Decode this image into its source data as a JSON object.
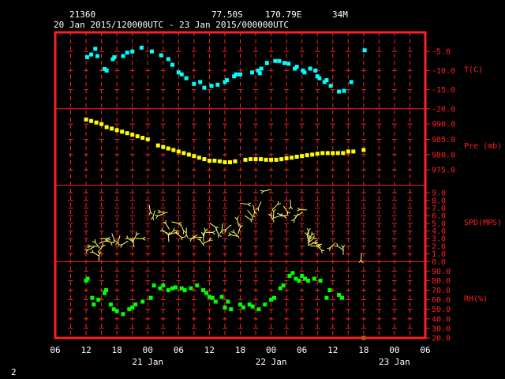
{
  "header": {
    "station_id": "21360",
    "latitude": "77.50S",
    "longitude": "170.79E",
    "elevation": "34M",
    "time_range": "20 Jan 2015/120000UTC - 23 Jan 2015/000000UTC"
  },
  "footer": {
    "page_number": "2"
  },
  "colors": {
    "frame": "#ff2020",
    "temperature": "#00ffff",
    "pressure": "#ffff00",
    "wind": "#ffff66",
    "humidity": "#00ff00",
    "text": "#ffffff"
  },
  "chart_data": {
    "type": "scatter",
    "x_unit": "hours since 20 Jan 06 UTC",
    "x_tick_labels": [
      "06",
      "12",
      "18",
      "00",
      "06",
      "12",
      "18",
      "00",
      "06",
      "12",
      "18",
      "00",
      "06"
    ],
    "x_day_labels": [
      {
        "label": "21 Jan",
        "tick_index": 3
      },
      {
        "label": "22 Jan",
        "tick_index": 7
      },
      {
        "label": "23 Jan",
        "tick_index": 11
      }
    ],
    "panels": [
      {
        "name": "temperature",
        "label": "T(C)",
        "ylim": [
          -20,
          0
        ],
        "tick_values": [
          -20,
          -15,
          -10,
          -5
        ],
        "tick_labels": [
          "-20.0",
          "-15.0",
          "-10.0",
          "-5.0"
        ],
        "points": [
          [
            6.2,
            -6.5
          ],
          [
            7.0,
            -5.8
          ],
          [
            7.8,
            -4.3
          ],
          [
            8.2,
            -6.2
          ],
          [
            9.6,
            -9.6
          ],
          [
            10.0,
            -10.0
          ],
          [
            11.2,
            -7.0
          ],
          [
            11.5,
            -6.5
          ],
          [
            13.2,
            -6.2
          ],
          [
            14.0,
            -5.3
          ],
          [
            15.0,
            -5.0
          ],
          [
            16.8,
            -4.0
          ],
          [
            18.8,
            -5.0
          ],
          [
            20.6,
            -6.0
          ],
          [
            22.0,
            -7.0
          ],
          [
            22.8,
            -8.5
          ],
          [
            24.0,
            -10.5
          ],
          [
            24.6,
            -11.0
          ],
          [
            25.5,
            -12.0
          ],
          [
            27.0,
            -13.5
          ],
          [
            28.2,
            -13.0
          ],
          [
            29.0,
            -14.5
          ],
          [
            30.4,
            -14.0
          ],
          [
            31.6,
            -13.7
          ],
          [
            33.0,
            -13.0
          ],
          [
            33.4,
            -12.5
          ],
          [
            34.8,
            -11.5
          ],
          [
            35.2,
            -11.0
          ],
          [
            36.0,
            -11.0
          ],
          [
            38.3,
            -10.5
          ],
          [
            39.5,
            -10.0
          ],
          [
            39.8,
            -10.7
          ],
          [
            40.1,
            -9.5
          ],
          [
            41.2,
            -8.0
          ],
          [
            42.8,
            -7.5
          ],
          [
            43.6,
            -7.5
          ],
          [
            44.6,
            -8.0
          ],
          [
            45.4,
            -8.2
          ],
          [
            46.6,
            -9.5
          ],
          [
            47.0,
            -9.0
          ],
          [
            48.2,
            -10.0
          ],
          [
            48.5,
            -10.5
          ],
          [
            49.6,
            -9.5
          ],
          [
            50.6,
            -10.0
          ],
          [
            51.0,
            -11.5
          ],
          [
            51.4,
            -12.0
          ],
          [
            52.4,
            -13.0
          ],
          [
            52.8,
            -12.5
          ],
          [
            53.6,
            -14.0
          ],
          [
            55.2,
            -15.5
          ],
          [
            56.2,
            -15.3
          ],
          [
            57.6,
            -13.0
          ],
          [
            60.2,
            -4.7
          ]
        ]
      },
      {
        "name": "pressure",
        "label": "Pre (mb)",
        "ylim": [
          970,
          995
        ],
        "tick_values": [
          975,
          980,
          985,
          990
        ],
        "tick_labels": [
          "975.0",
          "980.0",
          "985.0",
          "990.0"
        ],
        "points": [
          [
            6.0,
            991.5
          ],
          [
            7.0,
            991.0
          ],
          [
            8.0,
            990.5
          ],
          [
            9.0,
            990.0
          ],
          [
            10.0,
            989.0
          ],
          [
            11.0,
            988.5
          ],
          [
            12.0,
            988.0
          ],
          [
            13.0,
            987.5
          ],
          [
            14.0,
            987.0
          ],
          [
            15.0,
            986.5
          ],
          [
            16.0,
            986.0
          ],
          [
            17.0,
            985.5
          ],
          [
            18.0,
            985.0
          ],
          [
            20.0,
            983.0
          ],
          [
            21.0,
            982.5
          ],
          [
            22.0,
            982.0
          ],
          [
            23.0,
            981.5
          ],
          [
            24.0,
            981.0
          ],
          [
            25.0,
            980.5
          ],
          [
            26.0,
            980.0
          ],
          [
            27.0,
            979.5
          ],
          [
            28.0,
            979.0
          ],
          [
            29.0,
            978.5
          ],
          [
            30.0,
            978.0
          ],
          [
            31.0,
            978.0
          ],
          [
            32.0,
            977.8
          ],
          [
            33.0,
            977.5
          ],
          [
            34.0,
            977.5
          ],
          [
            35.0,
            977.8
          ],
          [
            37.0,
            978.3
          ],
          [
            38.0,
            978.5
          ],
          [
            39.0,
            978.5
          ],
          [
            40.0,
            978.5
          ],
          [
            41.0,
            978.3
          ],
          [
            42.0,
            978.3
          ],
          [
            43.0,
            978.3
          ],
          [
            44.0,
            978.5
          ],
          [
            45.0,
            978.8
          ],
          [
            46.0,
            979.0
          ],
          [
            47.0,
            979.3
          ],
          [
            48.0,
            979.5
          ],
          [
            49.0,
            979.8
          ],
          [
            50.0,
            980.0
          ],
          [
            51.0,
            980.3
          ],
          [
            52.0,
            980.5
          ],
          [
            53.0,
            980.5
          ],
          [
            54.0,
            980.5
          ],
          [
            55.0,
            980.5
          ],
          [
            56.0,
            980.5
          ],
          [
            57.0,
            981.0
          ],
          [
            58.0,
            981.0
          ],
          [
            60.0,
            981.5
          ]
        ]
      },
      {
        "name": "wind",
        "label": "SPD(MPS)",
        "ylim": [
          0,
          10
        ],
        "tick_values": [
          0,
          1,
          2,
          3,
          4,
          5,
          6,
          7,
          8,
          9
        ],
        "tick_labels": [
          "0.0",
          "1.0",
          "2.0",
          "3.0",
          "4.0",
          "5.0",
          "6.0",
          "7.0",
          "8.0",
          "9.0"
        ],
        "points": [
          [
            6.3,
            1.5
          ],
          [
            6.8,
            2.0
          ],
          [
            7.4,
            1.2
          ],
          [
            7.8,
            2.5
          ],
          [
            8.6,
            1.0
          ],
          [
            9.2,
            2.0
          ],
          [
            9.8,
            2.7
          ],
          [
            10.2,
            3.0
          ],
          [
            10.8,
            2.5
          ],
          [
            11.5,
            2.8
          ],
          [
            12.2,
            2.5
          ],
          [
            13.0,
            2.2
          ],
          [
            14.2,
            3.0
          ],
          [
            15.0,
            2.8
          ],
          [
            15.8,
            3.5
          ],
          [
            17.0,
            3.0
          ],
          [
            18.5,
            6.5
          ],
          [
            19.0,
            5.8
          ],
          [
            20.0,
            6.0
          ],
          [
            20.5,
            6.5
          ],
          [
            21.0,
            4.0
          ],
          [
            21.5,
            5.0
          ],
          [
            22.0,
            3.5
          ],
          [
            23.0,
            4.0
          ],
          [
            23.5,
            3.8
          ],
          [
            24.0,
            5.0
          ],
          [
            24.5,
            3.2
          ],
          [
            25.0,
            4.0
          ],
          [
            25.5,
            3.5
          ],
          [
            26.5,
            3.0
          ],
          [
            27.2,
            3.2
          ],
          [
            28.2,
            2.8
          ],
          [
            28.8,
            3.5
          ],
          [
            29.2,
            4.0
          ],
          [
            30.0,
            2.8
          ],
          [
            30.6,
            3.8
          ],
          [
            31.2,
            4.5
          ],
          [
            31.8,
            3.5
          ],
          [
            32.4,
            4.0
          ],
          [
            33.2,
            4.2
          ],
          [
            34.2,
            3.5
          ],
          [
            34.8,
            3.8
          ],
          [
            35.4,
            5.5
          ],
          [
            36.0,
            4.5
          ],
          [
            37.5,
            7.5
          ],
          [
            38.0,
            5.5
          ],
          [
            38.3,
            6.0
          ],
          [
            38.8,
            6.5
          ],
          [
            39.5,
            7.0
          ],
          [
            40.5,
            9.2
          ],
          [
            42.0,
            6.0
          ],
          [
            42.5,
            6.5
          ],
          [
            43.3,
            7.5
          ],
          [
            43.8,
            6.0
          ],
          [
            44.5,
            6.0
          ],
          [
            45.2,
            6.5
          ],
          [
            45.8,
            7.2
          ],
          [
            46.5,
            5.5
          ],
          [
            47.0,
            6.0
          ],
          [
            47.6,
            6.8
          ],
          [
            49.0,
            3.5
          ],
          [
            49.3,
            4.0
          ],
          [
            49.6,
            3.0
          ],
          [
            49.9,
            3.5
          ],
          [
            50.2,
            3.0
          ],
          [
            50.5,
            2.5
          ],
          [
            51.0,
            2.0
          ],
          [
            51.3,
            2.2
          ],
          [
            51.8,
            1.5
          ],
          [
            53.5,
            1.8
          ],
          [
            55.0,
            2.0
          ],
          [
            56.0,
            1.8
          ],
          [
            59.5,
            0.2
          ]
        ]
      },
      {
        "name": "humidity",
        "label": "RH(%)",
        "ylim": [
          20,
          100
        ],
        "tick_values": [
          20,
          30,
          40,
          50,
          60,
          70,
          80,
          90
        ],
        "tick_labels": [
          "20.0",
          "30.0",
          "40.0",
          "50.0",
          "60.0",
          "70.0",
          "80.0",
          "90.0"
        ],
        "points": [
          [
            6.0,
            80.0
          ],
          [
            6.3,
            82.0
          ],
          [
            7.2,
            62.0
          ],
          [
            7.5,
            55.0
          ],
          [
            8.4,
            60.0
          ],
          [
            9.6,
            67.0
          ],
          [
            9.9,
            70.0
          ],
          [
            10.8,
            55.0
          ],
          [
            11.4,
            50.0
          ],
          [
            12.0,
            48.0
          ],
          [
            13.2,
            45.0
          ],
          [
            14.4,
            50.0
          ],
          [
            15.0,
            52.0
          ],
          [
            15.6,
            55.0
          ],
          [
            17.0,
            58.0
          ],
          [
            18.6,
            62.0
          ],
          [
            19.2,
            75.0
          ],
          [
            20.4,
            72.0
          ],
          [
            21.0,
            75.0
          ],
          [
            22.0,
            70.0
          ],
          [
            22.8,
            72.0
          ],
          [
            23.4,
            73.0
          ],
          [
            24.6,
            72.0
          ],
          [
            25.2,
            70.0
          ],
          [
            26.4,
            72.0
          ],
          [
            27.6,
            75.0
          ],
          [
            28.8,
            70.0
          ],
          [
            29.4,
            67.0
          ],
          [
            30.0,
            63.0
          ],
          [
            30.6,
            62.0
          ],
          [
            31.2,
            58.0
          ],
          [
            32.4,
            63.0
          ],
          [
            33.0,
            52.0
          ],
          [
            33.6,
            58.0
          ],
          [
            34.2,
            50.0
          ],
          [
            36.0,
            55.0
          ],
          [
            36.6,
            52.0
          ],
          [
            37.8,
            55.0
          ],
          [
            38.4,
            53.0
          ],
          [
            39.6,
            50.0
          ],
          [
            40.8,
            55.0
          ],
          [
            42.0,
            60.0
          ],
          [
            42.6,
            62.0
          ],
          [
            43.8,
            72.0
          ],
          [
            44.4,
            75.0
          ],
          [
            45.6,
            85.0
          ],
          [
            46.2,
            88.0
          ],
          [
            46.8,
            82.0
          ],
          [
            47.4,
            80.0
          ],
          [
            48.0,
            85.0
          ],
          [
            48.6,
            82.0
          ],
          [
            49.2,
            80.0
          ],
          [
            50.4,
            82.0
          ],
          [
            51.6,
            80.0
          ],
          [
            52.8,
            62.0
          ],
          [
            53.4,
            70.0
          ],
          [
            55.2,
            65.0
          ],
          [
            55.8,
            62.0
          ],
          [
            60.0,
            20.0
          ]
        ]
      }
    ]
  }
}
